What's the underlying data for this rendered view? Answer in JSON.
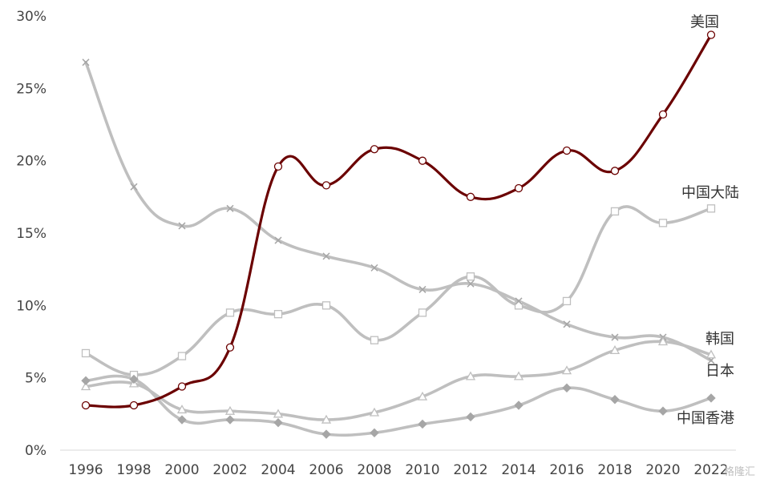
{
  "chart_data": {
    "type": "line",
    "x": [
      1996,
      1998,
      2000,
      2002,
      2004,
      2006,
      2008,
      2010,
      2012,
      2014,
      2016,
      2018,
      2020,
      2022
    ],
    "x_tick_labels": [
      "1996",
      "1998",
      "2000",
      "2002",
      "2004",
      "2006",
      "2008",
      "2010",
      "2012",
      "2014",
      "2016",
      "2018",
      "2020",
      "2022"
    ],
    "y_tick_labels": [
      "0%",
      "5%",
      "10%",
      "15%",
      "20%",
      "25%",
      "30%"
    ],
    "ylim": [
      0,
      30
    ],
    "y_ticks": [
      0,
      5,
      10,
      15,
      20,
      25,
      30
    ],
    "grid": false,
    "series": [
      {
        "name": "美国",
        "color": "#6b0000",
        "marker": "circle",
        "values": [
          3.1,
          3.1,
          4.4,
          7.1,
          19.6,
          18.3,
          20.8,
          20.0,
          17.5,
          18.1,
          20.7,
          19.3,
          23.2,
          28.7
        ]
      },
      {
        "name": "中国大陆",
        "color": "#bfbfbf",
        "marker": "square",
        "values": [
          6.7,
          5.2,
          6.5,
          9.5,
          9.4,
          10.0,
          7.6,
          9.5,
          12.0,
          10.0,
          10.3,
          16.5,
          15.7,
          16.7
        ]
      },
      {
        "name": "韩国",
        "color": "#bfbfbf",
        "marker": "x",
        "values": [
          26.8,
          18.2,
          15.5,
          16.7,
          14.5,
          13.4,
          12.6,
          11.1,
          11.5,
          10.3,
          8.7,
          7.8,
          7.8,
          6.2
        ]
      },
      {
        "name": "日本",
        "color": "#bfbfbf",
        "marker": "triangle",
        "values": [
          4.4,
          4.6,
          2.8,
          2.7,
          2.5,
          2.1,
          2.6,
          3.7,
          5.1,
          5.1,
          5.5,
          6.9,
          7.5,
          6.6
        ]
      },
      {
        "name": "中国香港",
        "color": "#bfbfbf",
        "marker": "diamond",
        "values": [
          4.8,
          4.9,
          2.1,
          2.1,
          1.9,
          1.1,
          1.2,
          1.8,
          2.3,
          3.1,
          4.3,
          3.5,
          2.7,
          3.6
        ]
      }
    ]
  },
  "watermark": "格隆汇"
}
